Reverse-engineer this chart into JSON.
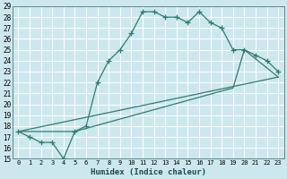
{
  "title": "",
  "xlabel": "Humidex (Indice chaleur)",
  "bg_color": "#cce8ee",
  "grid_color": "#ffffff",
  "line_color": "#2e7d6e",
  "xlim": [
    -0.5,
    23.5
  ],
  "ylim": [
    15,
    29
  ],
  "series1_x": [
    0,
    1,
    2,
    3,
    4,
    5,
    6,
    7,
    8,
    9,
    10,
    11,
    12,
    13,
    14,
    15,
    16,
    17,
    18,
    19,
    20,
    21,
    22,
    23
  ],
  "series1_y": [
    17.5,
    17.0,
    16.5,
    16.5,
    15.0,
    17.5,
    18.0,
    22.0,
    24.0,
    25.0,
    26.5,
    28.5,
    28.5,
    28.0,
    28.0,
    27.5,
    28.5,
    27.5,
    27.0,
    25.0,
    25.0,
    24.5,
    24.0,
    23.0
  ],
  "series2_x": [
    0,
    5,
    19,
    20,
    23
  ],
  "series2_y": [
    17.5,
    17.5,
    21.5,
    25.0,
    22.5
  ],
  "series3_x": [
    0,
    23
  ],
  "series3_y": [
    17.5,
    22.5
  ]
}
